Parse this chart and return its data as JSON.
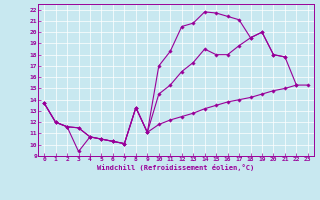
{
  "title": "",
  "xlabel": "Windchill (Refroidissement éolien,°C)",
  "ylabel": "",
  "xlim": [
    -0.5,
    23.5
  ],
  "ylim": [
    9,
    22.5
  ],
  "xticks": [
    0,
    1,
    2,
    3,
    4,
    5,
    6,
    7,
    8,
    9,
    10,
    11,
    12,
    13,
    14,
    15,
    16,
    17,
    18,
    19,
    20,
    21,
    22,
    23
  ],
  "yticks": [
    9,
    10,
    11,
    12,
    13,
    14,
    15,
    16,
    17,
    18,
    19,
    20,
    21,
    22
  ],
  "background_color": "#c8e8f0",
  "line_color": "#990099",
  "figsize": [
    3.2,
    2.0
  ],
  "dpi": 100,
  "line1_x": [
    0,
    1,
    2,
    3,
    4,
    5,
    6,
    7,
    8,
    9,
    10,
    11,
    12,
    13,
    14,
    15,
    16,
    17,
    18,
    19,
    20,
    21
  ],
  "line1_y": [
    13.7,
    12.0,
    11.6,
    9.4,
    10.7,
    10.5,
    10.3,
    10.1,
    13.3,
    11.1,
    17.0,
    18.3,
    20.5,
    20.8,
    21.8,
    21.7,
    21.4,
    21.1,
    19.5,
    20.0,
    18.0,
    17.8
  ],
  "line2_x": [
    0,
    1,
    2,
    3,
    4,
    5,
    6,
    7,
    8,
    9,
    10,
    11,
    12,
    13,
    14,
    15,
    16,
    17,
    18,
    19,
    20,
    21,
    22
  ],
  "line2_y": [
    13.7,
    12.0,
    11.6,
    11.5,
    10.7,
    10.5,
    10.3,
    10.1,
    13.3,
    11.1,
    14.5,
    15.3,
    16.5,
    17.3,
    18.5,
    18.0,
    18.0,
    18.8,
    19.5,
    20.0,
    18.0,
    17.8,
    15.3
  ],
  "line3_x": [
    0,
    1,
    2,
    3,
    4,
    5,
    6,
    7,
    8,
    9,
    10,
    11,
    12,
    13,
    14,
    15,
    16,
    17,
    18,
    19,
    20,
    21,
    22,
    23
  ],
  "line3_y": [
    13.7,
    12.0,
    11.6,
    11.5,
    10.7,
    10.5,
    10.3,
    10.1,
    13.3,
    11.1,
    11.8,
    12.2,
    12.5,
    12.8,
    13.2,
    13.5,
    13.8,
    14.0,
    14.2,
    14.5,
    14.8,
    15.0,
    15.3,
    15.3
  ]
}
